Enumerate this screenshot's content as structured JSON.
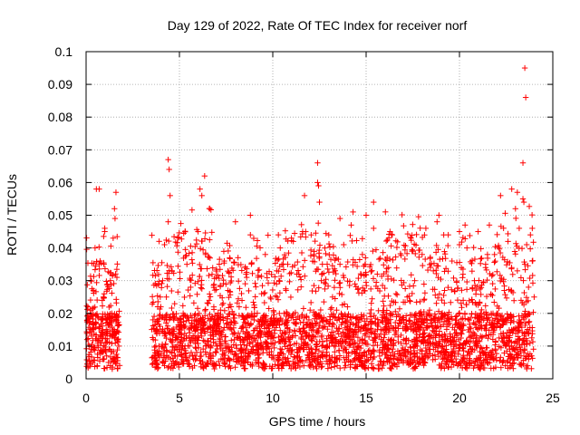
{
  "chart_data": {
    "type": "scatter",
    "title": "Day 129 of 2022, Rate Of TEC Index for receiver norf",
    "xlabel": "GPS time / hours",
    "ylabel": "ROTI / TECUs",
    "xlim": [
      0,
      25
    ],
    "ylim": [
      0,
      0.1
    ],
    "xticks": [
      "0",
      "5",
      "10",
      "15",
      "20",
      "25"
    ],
    "yticks": [
      "0",
      "0.01",
      "0.02",
      "0.03",
      "0.04",
      "0.05",
      "0.06",
      "0.07",
      "0.08",
      "0.09",
      "0.1"
    ],
    "grid": true,
    "legend": "none",
    "marker": "plus",
    "colors": {
      "points": "#ff0000",
      "grid": "#a0a0a0",
      "axes": "#000000"
    },
    "data_gap_hours": [
      1.8,
      3.5
    ],
    "series": [
      {
        "x": [
          0.05,
          0.1,
          0.18,
          0.25,
          0.32,
          0.4,
          0.48,
          0.55,
          0.62,
          0.7,
          0.78,
          0.85,
          0.93,
          1.0,
          1.08,
          1.15,
          1.23,
          1.3,
          1.38,
          1.45,
          1.52,
          1.6,
          1.68,
          1.75,
          0.7,
          1.55,
          1.0,
          0.75,
          1.65,
          1.2,
          0.6,
          1.4,
          3.6,
          3.7,
          3.8,
          3.9,
          4.0,
          4.1,
          4.2,
          4.3,
          4.4,
          4.5,
          4.6,
          4.7,
          4.8,
          4.9,
          5.0,
          5.2,
          5.4,
          5.6,
          5.8,
          6.0,
          6.2,
          6.4,
          6.6,
          6.8,
          4.4,
          4.45,
          6.1,
          6.35,
          6.6,
          7.0,
          7.2,
          7.4,
          7.6,
          7.8,
          8.0,
          8.2,
          8.4,
          8.6,
          8.8,
          9.0,
          9.2,
          9.4,
          9.6,
          9.8,
          10.0,
          10.2,
          10.4,
          10.6,
          10.8,
          11.0,
          11.2,
          11.4,
          11.6,
          11.8,
          8.8,
          10.3,
          11.1,
          11.7,
          12.0,
          12.2,
          12.4,
          12.5,
          12.6,
          12.8,
          13.0,
          13.2,
          13.4,
          13.6,
          13.8,
          14.0,
          14.2,
          14.4,
          14.6,
          14.8,
          15.0,
          15.2,
          15.4,
          15.6,
          15.8,
          16.0,
          16.2,
          16.4,
          16.6,
          16.8,
          12.4,
          12.45,
          13.6,
          14.3,
          15.4,
          17.0,
          17.2,
          17.4,
          17.6,
          17.8,
          18.0,
          18.2,
          18.4,
          18.6,
          18.8,
          19.0,
          19.2,
          19.4,
          19.6,
          19.8,
          20.0,
          20.2,
          20.4,
          20.6,
          20.8,
          21.0,
          21.2,
          21.4,
          21.6,
          21.8,
          18.9,
          20.3,
          20.0,
          21.5,
          22.0,
          22.2,
          22.4,
          22.6,
          22.8,
          23.0,
          23.1,
          23.2,
          23.3,
          23.4,
          23.5,
          23.6,
          23.7,
          23.8,
          23.9,
          24.0,
          22.8,
          23.1,
          23.4,
          23.45,
          23.5,
          23.55,
          23.9,
          0.2,
          0.9,
          1.3,
          4.2,
          5.1,
          6.9,
          7.9,
          9.1,
          10.9,
          12.1,
          13.3,
          14.9,
          16.3,
          17.5,
          18.7,
          19.9,
          21.1,
          22.3,
          23.7,
          0.4,
          1.1,
          4.6,
          5.7,
          8.3,
          9.7,
          11.3,
          13.9,
          15.3,
          17.1,
          19.3,
          21.7,
          23.3
        ],
        "y": [
          0.012,
          0.022,
          0.01,
          0.03,
          0.015,
          0.027,
          0.04,
          0.058,
          0.019,
          0.035,
          0.013,
          0.008,
          0.025,
          0.046,
          0.011,
          0.014,
          0.009,
          0.03,
          0.02,
          0.043,
          0.052,
          0.057,
          0.012,
          0.01,
          0.058,
          0.049,
          0.045,
          0.036,
          0.031,
          0.005,
          0.004,
          0.003,
          0.012,
          0.008,
          0.015,
          0.01,
          0.022,
          0.03,
          0.041,
          0.025,
          0.048,
          0.056,
          0.033,
          0.018,
          0.012,
          0.009,
          0.014,
          0.02,
          0.035,
          0.028,
          0.016,
          0.045,
          0.056,
          0.038,
          0.024,
          0.013,
          0.067,
          0.064,
          0.058,
          0.062,
          0.052,
          0.01,
          0.021,
          0.036,
          0.027,
          0.015,
          0.048,
          0.022,
          0.012,
          0.031,
          0.044,
          0.018,
          0.009,
          0.026,
          0.038,
          0.014,
          0.011,
          0.029,
          0.04,
          0.02,
          0.035,
          0.043,
          0.017,
          0.032,
          0.045,
          0.013,
          0.05,
          0.044,
          0.042,
          0.056,
          0.021,
          0.038,
          0.06,
          0.054,
          0.03,
          0.016,
          0.044,
          0.025,
          0.012,
          0.035,
          0.041,
          0.022,
          0.047,
          0.029,
          0.015,
          0.038,
          0.05,
          0.02,
          0.046,
          0.032,
          0.012,
          0.01,
          0.034,
          0.044,
          0.026,
          0.017,
          0.066,
          0.059,
          0.049,
          0.051,
          0.054,
          0.012,
          0.025,
          0.043,
          0.03,
          0.015,
          0.038,
          0.046,
          0.021,
          0.033,
          0.048,
          0.016,
          0.027,
          0.044,
          0.036,
          0.019,
          0.041,
          0.024,
          0.04,
          0.013,
          0.03,
          0.045,
          0.019,
          0.035,
          0.047,
          0.016,
          0.05,
          0.047,
          0.045,
          0.038,
          0.02,
          0.056,
          0.027,
          0.042,
          0.015,
          0.052,
          0.033,
          0.046,
          0.024,
          0.055,
          0.035,
          0.041,
          0.028,
          0.044,
          0.036,
          0.025,
          0.058,
          0.057,
          0.066,
          0.054,
          0.095,
          0.086,
          0.046,
          0.005,
          0.006,
          0.004,
          0.004,
          0.005,
          0.004,
          0.006,
          0.005,
          0.004,
          0.006,
          0.005,
          0.004,
          0.007,
          0.005,
          0.006,
          0.004,
          0.003,
          0.005,
          0.006,
          0.009,
          0.007,
          0.008,
          0.007,
          0.009,
          0.008,
          0.007,
          0.009,
          0.008,
          0.007,
          0.009,
          0.008,
          0.007
        ]
      }
    ]
  }
}
